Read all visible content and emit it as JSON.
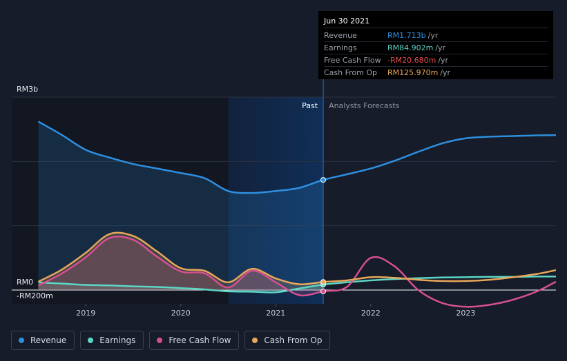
{
  "chart_data": {
    "type": "area",
    "y_axis_top_label": "RM3b",
    "y_axis_zero_label": "RM0",
    "y_axis_bottom_label": "-RM200m",
    "ylim": [
      -200,
      3000
    ],
    "x_ticks": [
      "2019",
      "2020",
      "2021",
      "2022",
      "2023"
    ],
    "x_tick_values": [
      2019.0,
      2020.0,
      2021.0,
      2022.0,
      2023.0
    ],
    "xlim": [
      2018.22,
      2023.95
    ],
    "past_label": "Past",
    "forecast_label": "Analysts Forecasts",
    "divider_x": 2021.5,
    "highlight_start_x": 2020.5,
    "series": [
      {
        "name": "Revenue",
        "color": "#2e8fe0",
        "x": [
          2018.5,
          2018.75,
          2019.0,
          2019.25,
          2019.5,
          2019.75,
          2020.0,
          2020.25,
          2020.5,
          2020.75,
          2021.0,
          2021.25,
          2021.5,
          2021.75,
          2022.0,
          2022.25,
          2022.5,
          2022.75,
          2023.0,
          2023.25,
          2023.5,
          2023.75,
          2023.95
        ],
        "values": [
          2620,
          2410,
          2180,
          2060,
          1960,
          1890,
          1820,
          1740,
          1540,
          1510,
          1540,
          1590,
          1713,
          1800,
          1890,
          2010,
          2150,
          2280,
          2360,
          2385,
          2395,
          2405,
          2410
        ]
      },
      {
        "name": "Earnings",
        "color": "#5ed6c6",
        "x": [
          2018.5,
          2018.75,
          2019.0,
          2019.25,
          2019.5,
          2019.75,
          2020.0,
          2020.25,
          2020.5,
          2020.75,
          2021.0,
          2021.25,
          2021.5,
          2021.75,
          2022.0,
          2022.25,
          2022.5,
          2022.75,
          2023.0,
          2023.25,
          2023.5,
          2023.75,
          2023.95
        ],
        "values": [
          120,
          100,
          80,
          72,
          58,
          48,
          30,
          10,
          -20,
          -25,
          -35,
          25,
          85,
          120,
          150,
          170,
          185,
          195,
          200,
          205,
          205,
          210,
          210
        ]
      },
      {
        "name": "Free Cash Flow",
        "color": "#d6508f",
        "x": [
          2018.5,
          2018.75,
          2019.0,
          2019.25,
          2019.5,
          2019.75,
          2020.0,
          2020.25,
          2020.5,
          2020.75,
          2021.0,
          2021.25,
          2021.5,
          2021.75,
          2022.0,
          2022.25,
          2022.5,
          2022.75,
          2023.0,
          2023.25,
          2023.5,
          2023.75,
          2023.95
        ],
        "values": [
          70,
          260,
          510,
          810,
          780,
          520,
          290,
          260,
          40,
          300,
          120,
          -80,
          -20.68,
          50,
          500,
          370,
          0,
          -200,
          -260,
          -230,
          -150,
          -20,
          130
        ]
      },
      {
        "name": "Cash From Op",
        "color": "#e9a75a",
        "x": [
          2018.5,
          2018.75,
          2019.0,
          2019.25,
          2019.5,
          2019.75,
          2020.0,
          2020.25,
          2020.5,
          2020.75,
          2021.0,
          2021.25,
          2021.5,
          2021.75,
          2022.0,
          2022.25,
          2022.5,
          2022.75,
          2023.0,
          2023.25,
          2023.5,
          2023.75,
          2023.95
        ],
        "values": [
          130,
          320,
          580,
          870,
          840,
          600,
          340,
          300,
          120,
          330,
          180,
          90,
          125.97,
          150,
          200,
          190,
          160,
          140,
          140,
          160,
          200,
          250,
          310
        ]
      }
    ]
  },
  "tooltip": {
    "date": "Jun 30 2021",
    "rows": [
      {
        "label": "Revenue",
        "value": "RM1.713b",
        "unit": "/yr",
        "color": "#2e8fe0"
      },
      {
        "label": "Earnings",
        "value": "RM84.902m",
        "unit": "/yr",
        "color": "#5ed6c6"
      },
      {
        "label": "Free Cash Flow",
        "value": "-RM20.680m",
        "unit": "/yr",
        "color": "#e84c4c"
      },
      {
        "label": "Cash From Op",
        "value": "RM125.970m",
        "unit": "/yr",
        "color": "#e9a75a"
      }
    ]
  },
  "legend": [
    {
      "label": "Revenue",
      "color": "#2e8fe0"
    },
    {
      "label": "Earnings",
      "color": "#5ed6c6"
    },
    {
      "label": "Free Cash Flow",
      "color": "#d6508f"
    },
    {
      "label": "Cash From Op",
      "color": "#e9a75a"
    }
  ]
}
